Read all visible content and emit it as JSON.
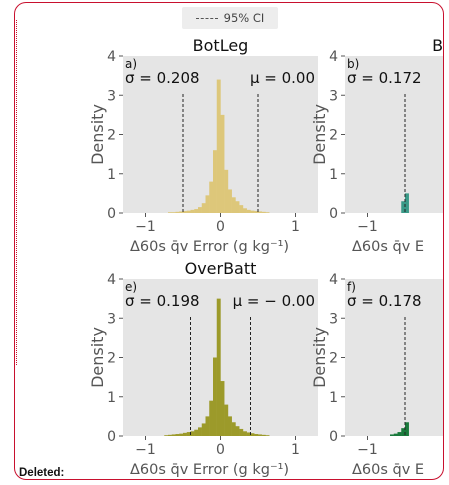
{
  "legend": {
    "label": "95% CI"
  },
  "deleted_label": "Deleted:",
  "colors": {
    "frame": "#c8102e",
    "axes_bg": "#e5e5e5",
    "ci_line": "#222222"
  },
  "chart_data": [
    {
      "type": "bar",
      "panel_label": "a)",
      "title": "BotLeg",
      "sigma_text": "σ = 0.208",
      "mu_text": "μ = 0.00",
      "ci": [
        -0.5,
        0.5
      ],
      "color": "#ddc77a",
      "ylabel": "Density",
      "xlabel": "Δ60s q̄v Error (g kg⁻¹)",
      "xticks": [
        "−1",
        "0",
        "1"
      ],
      "yticks": [
        "0",
        "1",
        "2",
        "3",
        "4"
      ],
      "xlim": [
        -1.3,
        1.3
      ],
      "ylim": [
        0,
        4
      ],
      "bins": {
        "centers": [
          -0.675,
          -0.625,
          -0.575,
          -0.525,
          -0.475,
          -0.425,
          -0.375,
          -0.325,
          -0.275,
          -0.225,
          -0.175,
          -0.125,
          -0.075,
          -0.025,
          0.025,
          0.075,
          0.125,
          0.175,
          0.225,
          0.275,
          0.325,
          0.375,
          0.425,
          0.475,
          0.525,
          0.575,
          0.625
        ],
        "density": [
          0.02,
          0.02,
          0.03,
          0.04,
          0.05,
          0.06,
          0.08,
          0.1,
          0.15,
          0.25,
          0.45,
          0.8,
          1.6,
          3.4,
          2.5,
          1.1,
          0.6,
          0.4,
          0.3,
          0.2,
          0.12,
          0.08,
          0.06,
          0.05,
          0.04,
          0.03,
          0.02
        ]
      }
    },
    {
      "type": "bar",
      "panel_label": "b)",
      "title": "Bo",
      "sigma_text": "σ = 0.172",
      "ci": [
        -0.5,
        0.5
      ],
      "color": "#3a9a88",
      "ylabel": "Density",
      "xlabel": "Δ60s q̄v E",
      "xticks": [
        "−1"
      ],
      "yticks": [
        "0",
        "1",
        "2",
        "3",
        "4"
      ],
      "xlim": [
        -1.3,
        1.3
      ],
      "ylim": [
        0,
        4
      ],
      "bins": {
        "centers": [
          -0.525,
          -0.475
        ],
        "density": [
          0.3,
          0.5
        ]
      }
    },
    {
      "type": "bar",
      "panel_label": "e)",
      "title": "OverBatt",
      "sigma_text": "σ = 0.198",
      "mu_text": "μ = − 0.00",
      "ci": [
        -0.4,
        0.4
      ],
      "color": "#9c9a2a",
      "ylabel": "Density",
      "xlabel": "Δ60s q̄v Error (g kg⁻¹)",
      "xticks": [
        "−1",
        "0",
        "1"
      ],
      "yticks": [
        "0",
        "1",
        "2",
        "3",
        "4"
      ],
      "xlim": [
        -1.3,
        1.3
      ],
      "ylim": [
        0,
        4
      ],
      "bins": {
        "centers": [
          -0.725,
          -0.675,
          -0.625,
          -0.575,
          -0.525,
          -0.475,
          -0.425,
          -0.375,
          -0.325,
          -0.275,
          -0.225,
          -0.175,
          -0.125,
          -0.075,
          -0.025,
          0.025,
          0.075,
          0.125,
          0.175,
          0.225,
          0.275,
          0.325,
          0.375,
          0.425,
          0.475,
          0.525,
          0.575,
          0.625
        ],
        "density": [
          0.02,
          0.03,
          0.04,
          0.05,
          0.06,
          0.08,
          0.1,
          0.12,
          0.16,
          0.22,
          0.32,
          0.5,
          0.9,
          2.0,
          3.5,
          1.4,
          0.8,
          0.5,
          0.35,
          0.25,
          0.18,
          0.12,
          0.09,
          0.07,
          0.05,
          0.04,
          0.03,
          0.02
        ]
      }
    },
    {
      "type": "bar",
      "panel_label": "f)",
      "sigma_text": "σ = 0.178",
      "ci": [
        -0.5,
        0.5
      ],
      "color": "#1a7a3c",
      "ylabel": "Density",
      "xlabel": "Δ60s q̄v E",
      "xticks": [
        "−1"
      ],
      "yticks": [
        "0",
        "1",
        "2",
        "3",
        "4"
      ],
      "xlim": [
        -1.3,
        1.3
      ],
      "ylim": [
        0,
        4
      ],
      "bins": {
        "centers": [
          -0.675,
          -0.625,
          -0.575,
          -0.525,
          -0.475
        ],
        "density": [
          0.04,
          0.06,
          0.1,
          0.2,
          0.35
        ]
      }
    }
  ]
}
